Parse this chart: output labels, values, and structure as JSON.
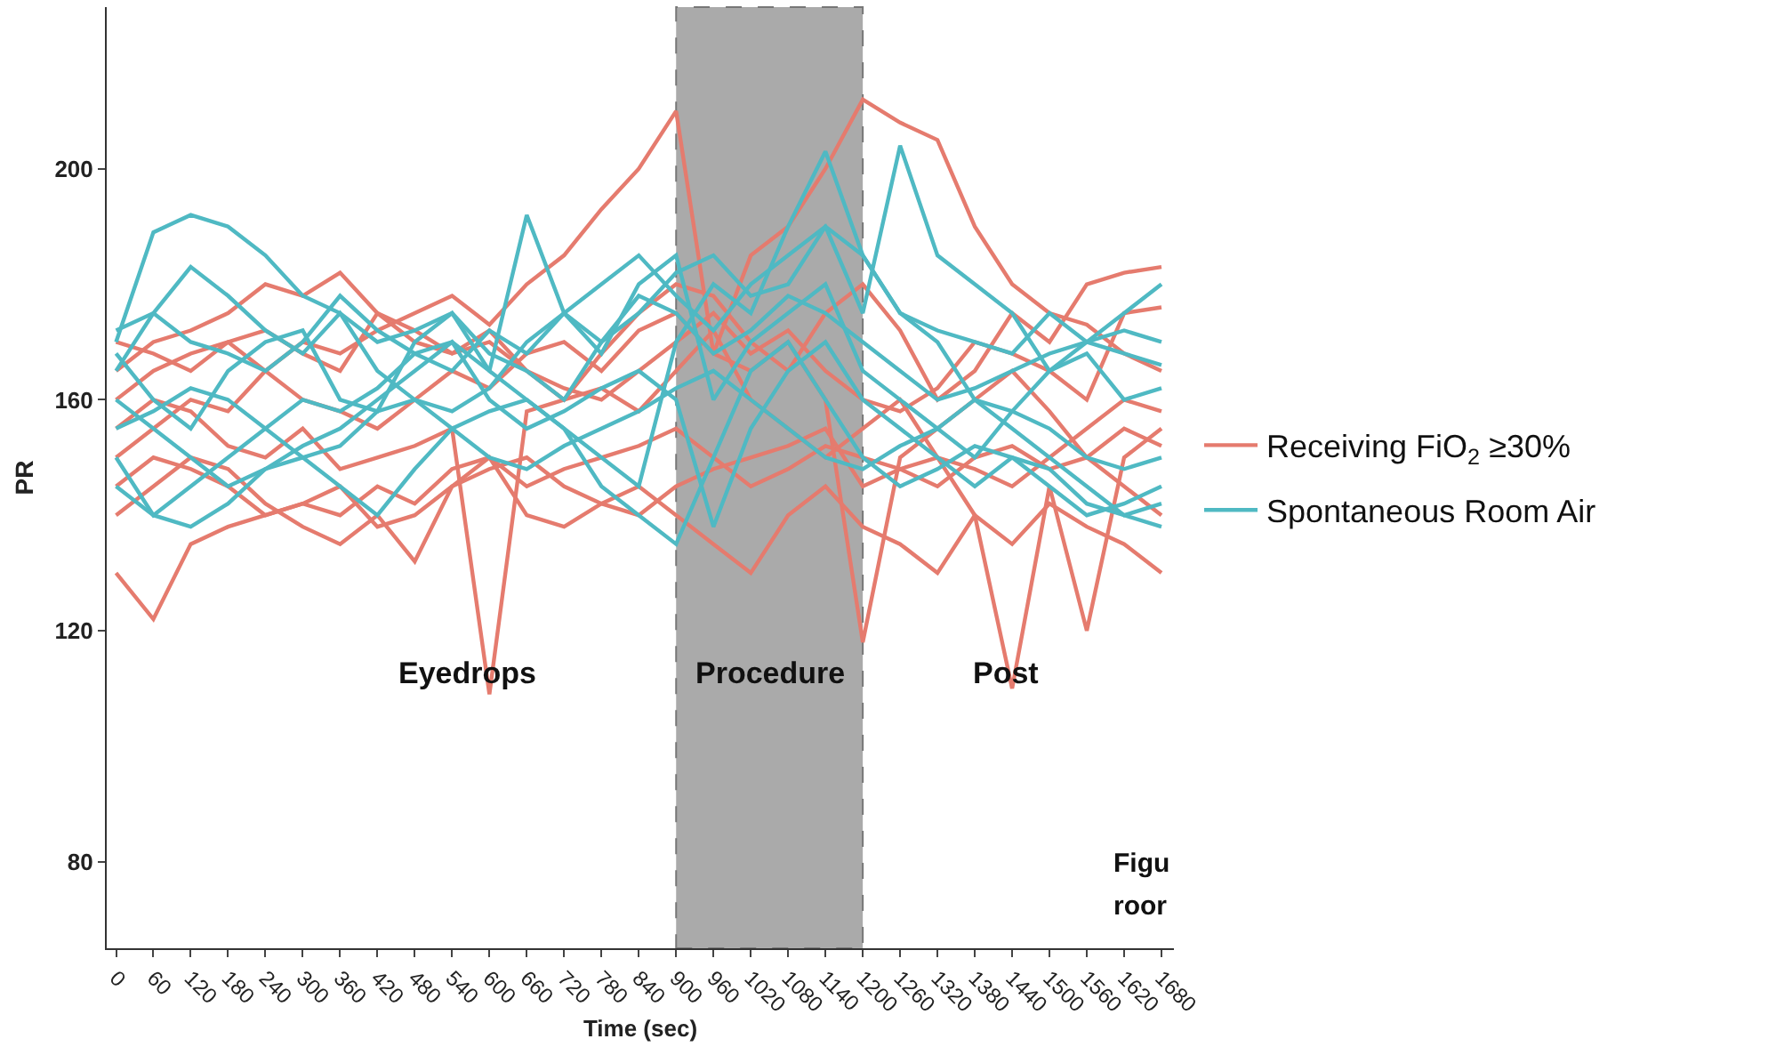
{
  "chart_data": {
    "type": "line",
    "xlabel": "Time (sec)",
    "ylabel": "PR",
    "x": [
      0,
      60,
      120,
      180,
      240,
      300,
      360,
      420,
      480,
      540,
      600,
      660,
      720,
      780,
      840,
      900,
      960,
      1020,
      1080,
      1140,
      1200,
      1260,
      1320,
      1380,
      1440,
      1500,
      1560,
      1620,
      1680
    ],
    "xlim": [
      -15,
      1700
    ],
    "xticks": [
      0,
      60,
      120,
      180,
      240,
      300,
      360,
      420,
      480,
      540,
      600,
      660,
      720,
      780,
      840,
      900,
      960,
      1020,
      1080,
      1140,
      1200,
      1260,
      1320,
      1380,
      1440,
      1500,
      1560,
      1620,
      1680
    ],
    "ylim": [
      65,
      228
    ],
    "yticks": [
      80,
      120,
      160,
      200
    ],
    "grid": false,
    "legend": "right",
    "line_style": "solid",
    "marker": "none",
    "bands": [
      {
        "axis": "x",
        "from": 900,
        "to": 1200,
        "color": "#aaaaaa",
        "label": "Procedure"
      }
    ],
    "annotations": [
      "Eyedrops",
      "Post",
      "Figu",
      "roor"
    ],
    "series": [
      {
        "name": "Receiving FiO$_{2}$ ≥30%",
        "color": "#e57b6e",
        "values": [
          150,
          155,
          160,
          158,
          165,
          170,
          168,
          172,
          175,
          178,
          173,
          180,
          185,
          193,
          200,
          210,
          168,
          185,
          190,
          200,
          212,
          208,
          205,
          190,
          180,
          175,
          173,
          168,
          165
        ]
      },
      {
        "color": "#e57b6e",
        "values": [
          130,
          122,
          135,
          138,
          140,
          142,
          140,
          145,
          142,
          148,
          150,
          145,
          148,
          150,
          152,
          155,
          150,
          145,
          148,
          152,
          150,
          148,
          145,
          150,
          152,
          148,
          150,
          145,
          140
        ]
      },
      {
        "color": "#e57b6e",
        "values": [
          155,
          160,
          158,
          152,
          150,
          155,
          148,
          150,
          152,
          155,
          109,
          158,
          160,
          162,
          158,
          165,
          172,
          160,
          155,
          150,
          155,
          160,
          150,
          148,
          145,
          150,
          155,
          160,
          158
        ]
      },
      {
        "color": "#e57b6e",
        "values": [
          160,
          165,
          168,
          170,
          165,
          160,
          158,
          155,
          160,
          165,
          162,
          168,
          170,
          165,
          172,
          175,
          168,
          165,
          170,
          160,
          118,
          150,
          155,
          160,
          165,
          158,
          150,
          155,
          152
        ]
      },
      {
        "color": "#e57b6e",
        "values": [
          145,
          150,
          148,
          145,
          140,
          142,
          145,
          138,
          140,
          145,
          148,
          150,
          145,
          142,
          140,
          145,
          148,
          150,
          152,
          155,
          145,
          148,
          150,
          140,
          110,
          145,
          120,
          150,
          155
        ]
      },
      {
        "color": "#e57b6e",
        "values": [
          165,
          170,
          172,
          175,
          180,
          178,
          182,
          175,
          170,
          168,
          172,
          165,
          160,
          168,
          175,
          180,
          178,
          170,
          165,
          175,
          180,
          172,
          160,
          165,
          175,
          170,
          180,
          182,
          183
        ]
      },
      {
        "color": "#e57b6e",
        "values": [
          140,
          145,
          150,
          148,
          142,
          138,
          135,
          140,
          132,
          145,
          150,
          140,
          138,
          142,
          145,
          140,
          135,
          130,
          140,
          145,
          138,
          135,
          130,
          140,
          135,
          142,
          138,
          135,
          130
        ]
      },
      {
        "color": "#e57b6e",
        "values": [
          170,
          168,
          165,
          170,
          172,
          168,
          165,
          175,
          172,
          168,
          170,
          165,
          162,
          160,
          165,
          170,
          175,
          168,
          172,
          165,
          160,
          158,
          162,
          170,
          168,
          165,
          160,
          175,
          176
        ]
      },
      {
        "name": "Spontaneous Room Air",
        "color": "#4fb9c3",
        "values": [
          170,
          189,
          192,
          190,
          185,
          178,
          175,
          170,
          172,
          175,
          168,
          165,
          160,
          170,
          175,
          182,
          185,
          178,
          180,
          190,
          185,
          175,
          172,
          170,
          168,
          175,
          170,
          168,
          166
        ]
      },
      {
        "color": "#4fb9c3",
        "values": [
          165,
          175,
          183,
          178,
          172,
          168,
          175,
          165,
          160,
          158,
          162,
          170,
          175,
          180,
          185,
          178,
          172,
          180,
          185,
          190,
          175,
          204,
          185,
          180,
          175,
          165,
          168,
          160,
          162
        ]
      },
      {
        "color": "#4fb9c3",
        "values": [
          168,
          160,
          155,
          165,
          170,
          172,
          160,
          158,
          170,
          175,
          165,
          160,
          155,
          150,
          145,
          170,
          180,
          175,
          190,
          203,
          185,
          175,
          170,
          160,
          155,
          150,
          145,
          140,
          142
        ]
      },
      {
        "color": "#4fb9c3",
        "values": [
          150,
          140,
          145,
          150,
          155,
          160,
          158,
          162,
          168,
          170,
          165,
          192,
          175,
          168,
          180,
          185,
          160,
          170,
          175,
          180,
          165,
          160,
          155,
          150,
          158,
          165,
          170,
          175,
          180
        ]
      },
      {
        "color": "#4fb9c3",
        "values": [
          160,
          155,
          150,
          145,
          148,
          152,
          155,
          160,
          165,
          170,
          160,
          155,
          158,
          162,
          165,
          160,
          138,
          155,
          165,
          170,
          160,
          155,
          150,
          145,
          150,
          148,
          142,
          140,
          138
        ]
      },
      {
        "color": "#4fb9c3",
        "values": [
          145,
          140,
          138,
          142,
          148,
          150,
          145,
          140,
          148,
          155,
          158,
          160,
          155,
          145,
          140,
          135,
          150,
          165,
          170,
          160,
          150,
          145,
          148,
          152,
          150,
          145,
          140,
          142,
          145
        ]
      },
      {
        "color": "#4fb9c3",
        "values": [
          172,
          175,
          170,
          168,
          165,
          170,
          178,
          172,
          168,
          165,
          172,
          168,
          175,
          170,
          178,
          175,
          168,
          172,
          178,
          175,
          170,
          165,
          160,
          162,
          165,
          168,
          170,
          172,
          170
        ]
      },
      {
        "color": "#4fb9c3",
        "values": [
          155,
          158,
          162,
          160,
          155,
          150,
          152,
          158,
          160,
          155,
          150,
          148,
          152,
          155,
          158,
          162,
          165,
          160,
          155,
          150,
          148,
          152,
          155,
          160,
          158,
          155,
          150,
          148,
          150
        ]
      }
    ]
  }
}
